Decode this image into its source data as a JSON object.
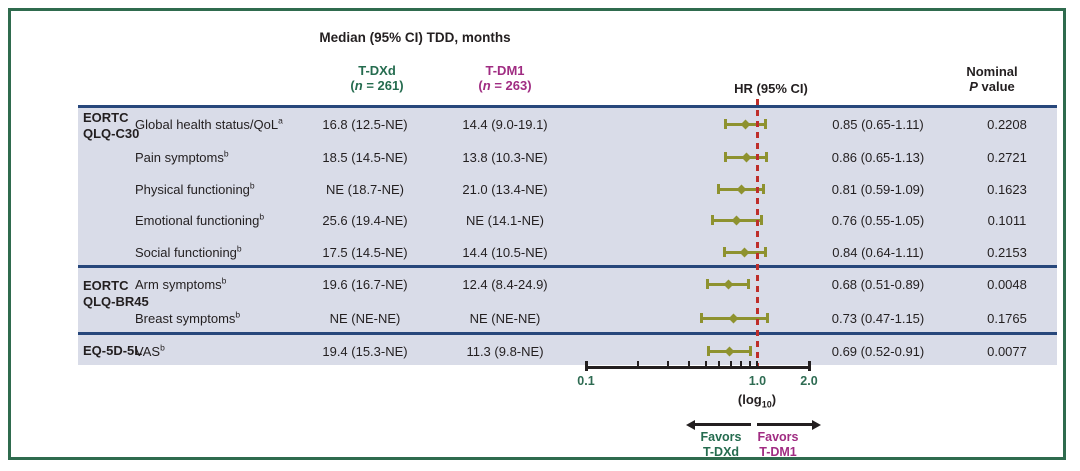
{
  "title": "Median (95% CI) TDD, months",
  "header": {
    "tdxd": {
      "name": "T-DXd",
      "n_label": "(n = 261)"
    },
    "tdm1": {
      "name": "T-DM1",
      "n_label": "(n = 263)"
    },
    "hr": "HR (95% CI)",
    "p_line1": "Nominal",
    "p_line2": "P value"
  },
  "groups": [
    {
      "line1": "EORTC",
      "line2": "QLQ-C30"
    },
    {
      "line1": "EORTC",
      "line2": "QLQ-BR45"
    },
    {
      "line1": "EQ-5D-5L",
      "line2": ""
    }
  ],
  "table": {
    "rows": [
      {
        "measure": "Global health status/QoL",
        "sup": "a",
        "tdxd": "16.8 (12.5-NE)",
        "tdm1": "14.4 (9.0-19.1)",
        "hr": 0.85,
        "ci_low": 0.65,
        "ci_high": 1.11,
        "hr_text": "0.85 (0.65-1.11)",
        "p": "0.2208"
      },
      {
        "measure": "Pain symptoms",
        "sup": "b",
        "tdxd": "18.5 (14.5-NE)",
        "tdm1": "13.8 (10.3-NE)",
        "hr": 0.86,
        "ci_low": 0.65,
        "ci_high": 1.13,
        "hr_text": "0.86 (0.65-1.13)",
        "p": "0.2721"
      },
      {
        "measure": "Physical functioning",
        "sup": "b",
        "tdxd": "NE (18.7-NE)",
        "tdm1": "21.0 (13.4-NE)",
        "hr": 0.81,
        "ci_low": 0.59,
        "ci_high": 1.09,
        "hr_text": "0.81 (0.59-1.09)",
        "p": "0.1623"
      },
      {
        "measure": "Emotional functioning",
        "sup": "b",
        "tdxd": "25.6 (19.4-NE)",
        "tdm1": "NE (14.1-NE)",
        "hr": 0.76,
        "ci_low": 0.55,
        "ci_high": 1.05,
        "hr_text": "0.76 (0.55-1.05)",
        "p": "0.1011"
      },
      {
        "measure": "Social functioning",
        "sup": "b",
        "tdxd": "17.5 (14.5-NE)",
        "tdm1": "14.4 (10.5-NE)",
        "hr": 0.84,
        "ci_low": 0.64,
        "ci_high": 1.11,
        "hr_text": "0.84 (0.64-1.11)",
        "p": "0.2153"
      },
      {
        "measure": "Arm symptoms",
        "sup": "b",
        "tdxd": "19.6 (16.7-NE)",
        "tdm1": "12.4 (8.4-24.9)",
        "hr": 0.68,
        "ci_low": 0.51,
        "ci_high": 0.89,
        "hr_text": "0.68 (0.51-0.89)",
        "p": "0.0048"
      },
      {
        "measure": "Breast symptoms",
        "sup": "b",
        "tdxd": "NE (NE-NE)",
        "tdm1": "NE (NE-NE)",
        "hr": 0.73,
        "ci_low": 0.47,
        "ci_high": 1.15,
        "hr_text": "0.73 (0.47-1.15)",
        "p": "0.1765"
      },
      {
        "measure": "VAS",
        "sup": "b",
        "tdxd": "19.4 (15.3-NE)",
        "tdm1": "11.3 (9.8-NE)",
        "hr": 0.69,
        "ci_low": 0.52,
        "ci_high": 0.91,
        "hr_text": "0.69 (0.52-0.91)",
        "p": "0.0077"
      }
    ]
  },
  "axis": {
    "scale_label": "(log10)",
    "major_ticks": [
      {
        "label": "0.1",
        "value": 0.1
      },
      {
        "label": "1.0",
        "value": 1.0
      },
      {
        "label": "2.0",
        "value": 2.0
      }
    ],
    "minor_tick_values": [
      0.2,
      0.3,
      0.4,
      0.5,
      0.6,
      0.7,
      0.8,
      0.9,
      1.0
    ]
  },
  "favors": {
    "left": {
      "line1": "Favors",
      "line2": "T-DXd"
    },
    "right": {
      "line1": "Favors",
      "line2": "T-DM1"
    }
  },
  "colors": {
    "frame_green": "#2F6B4E",
    "tdxd_green": "#256C4F",
    "tdm1_magenta": "#A02C82",
    "row_shading": "#D9DCE8",
    "separator_navy": "#27477B",
    "marker_olive": "#8E922F",
    "reference_red": "#BE2E2A",
    "axis_tick_green": "#2E6B52",
    "text_black": "#231F20"
  },
  "chart_data": {
    "type": "scatter",
    "subtype": "forest-plot",
    "title": "Median (95% CI) TDD, months",
    "x_axis": {
      "scale": "log10",
      "min": 0.1,
      "max": 2.0,
      "tick_labels": [
        "0.1",
        "1.0",
        "2.0"
      ],
      "label": "(log10)"
    },
    "reference_line": 1.0,
    "legend": {
      "left_arrow": "Favors T-DXd",
      "right_arrow": "Favors T-DM1"
    },
    "groups": [
      "EORTC QLQ-C30",
      "EORTC QLQ-BR45",
      "EQ-5D-5L"
    ],
    "points": [
      {
        "group": "EORTC QLQ-C30",
        "label": "Global health status/QoL",
        "hr": 0.85,
        "ci_low": 0.65,
        "ci_high": 1.11,
        "p": 0.2208
      },
      {
        "group": "EORTC QLQ-C30",
        "label": "Pain symptoms",
        "hr": 0.86,
        "ci_low": 0.65,
        "ci_high": 1.13,
        "p": 0.2721
      },
      {
        "group": "EORTC QLQ-C30",
        "label": "Physical functioning",
        "hr": 0.81,
        "ci_low": 0.59,
        "ci_high": 1.09,
        "p": 0.1623
      },
      {
        "group": "EORTC QLQ-C30",
        "label": "Emotional functioning",
        "hr": 0.76,
        "ci_low": 0.55,
        "ci_high": 1.05,
        "p": 0.1011
      },
      {
        "group": "EORTC QLQ-C30",
        "label": "Social functioning",
        "hr": 0.84,
        "ci_low": 0.64,
        "ci_high": 1.11,
        "p": 0.2153
      },
      {
        "group": "EORTC QLQ-BR45",
        "label": "Arm symptoms",
        "hr": 0.68,
        "ci_low": 0.51,
        "ci_high": 0.89,
        "p": 0.0048
      },
      {
        "group": "EORTC QLQ-BR45",
        "label": "Breast symptoms",
        "hr": 0.73,
        "ci_low": 0.47,
        "ci_high": 1.15,
        "p": 0.1765
      },
      {
        "group": "EQ-5D-5L",
        "label": "VAS",
        "hr": 0.69,
        "ci_low": 0.52,
        "ci_high": 0.91,
        "p": 0.0077
      }
    ]
  }
}
